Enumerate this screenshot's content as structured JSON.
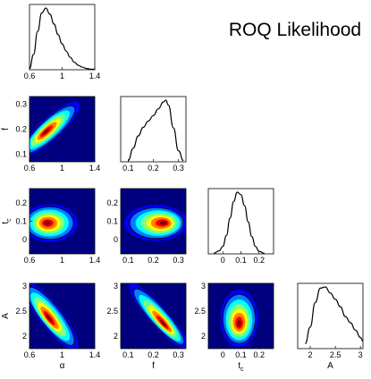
{
  "chart_data": {
    "type": "corner-plot",
    "title": "ROQ Likelihood",
    "parameters": [
      {
        "key": "alpha",
        "label": "α",
        "range": [
          0.6,
          1.4
        ],
        "ticks": [
          0.6,
          1,
          1.4
        ],
        "tick_labels": [
          "0.6",
          "1",
          "1.4"
        ]
      },
      {
        "key": "f",
        "label": "f",
        "range": [
          0.07,
          0.33
        ],
        "ticks": [
          0.1,
          0.2,
          0.3
        ],
        "tick_labels": [
          "0.1",
          "0.2",
          "0.3"
        ]
      },
      {
        "key": "tc",
        "label": "t",
        "label_sub": "c",
        "range": [
          -0.08,
          0.28
        ],
        "ticks": [
          0,
          0.1,
          0.2
        ],
        "tick_labels": [
          "0",
          "0.1",
          "0.2"
        ]
      },
      {
        "key": "A",
        "label": "A",
        "range": [
          1.75,
          3.05
        ],
        "ticks": [
          2,
          2.5,
          3
        ],
        "tick_labels": [
          "2",
          "2.5",
          "3"
        ]
      }
    ],
    "marginals": [
      {
        "param": "alpha",
        "x": [
          0.6,
          0.65,
          0.7,
          0.75,
          0.8,
          0.85,
          0.9,
          0.95,
          1.0,
          1.05,
          1.1,
          1.15,
          1.2,
          1.25,
          1.3,
          1.35,
          1.4
        ],
        "density": [
          0.02,
          0.25,
          0.62,
          0.92,
          1.0,
          0.9,
          0.74,
          0.57,
          0.42,
          0.3,
          0.2,
          0.12,
          0.07,
          0.04,
          0.02,
          0.01,
          0.005
        ]
      },
      {
        "param": "f",
        "x": [
          0.1,
          0.12,
          0.14,
          0.16,
          0.18,
          0.2,
          0.22,
          0.24,
          0.25,
          0.26,
          0.28,
          0.3,
          0.32
        ],
        "density": [
          0.02,
          0.22,
          0.42,
          0.56,
          0.66,
          0.75,
          0.86,
          0.97,
          1.0,
          0.92,
          0.55,
          0.18,
          0.02
        ]
      },
      {
        "param": "tc",
        "x": [
          -0.05,
          -0.02,
          0.0,
          0.02,
          0.04,
          0.06,
          0.08,
          0.1,
          0.12,
          0.14,
          0.16,
          0.18,
          0.2,
          0.23
        ],
        "density": [
          0.01,
          0.05,
          0.12,
          0.3,
          0.58,
          0.85,
          1.0,
          0.96,
          0.78,
          0.52,
          0.28,
          0.12,
          0.04,
          0.01
        ]
      },
      {
        "param": "A",
        "x": [
          1.9,
          2.0,
          2.1,
          2.2,
          2.3,
          2.4,
          2.5,
          2.6,
          2.7,
          2.8,
          2.9,
          3.0,
          3.05
        ],
        "density": [
          0.08,
          0.35,
          0.75,
          0.98,
          1.0,
          0.9,
          0.8,
          0.68,
          0.52,
          0.42,
          0.3,
          0.18,
          0.12
        ]
      }
    ],
    "joints": [
      {
        "x": "alpha",
        "y": "f",
        "mean": [
          0.85,
          0.2
        ],
        "sd": [
          0.14,
          0.042
        ],
        "corr": 0.85,
        "peak": [
          0.8,
          0.19
        ]
      },
      {
        "x": "alpha",
        "y": "tc",
        "mean": [
          0.85,
          0.09
        ],
        "sd": [
          0.13,
          0.04
        ],
        "corr": 0.0,
        "peak": [
          0.82,
          0.09
        ]
      },
      {
        "x": "f",
        "y": "tc",
        "mean": [
          0.21,
          0.09
        ],
        "sd": [
          0.048,
          0.038
        ],
        "corr": 0.0,
        "peak": [
          0.24,
          0.09
        ]
      },
      {
        "x": "alpha",
        "y": "A",
        "mean": [
          0.86,
          2.4
        ],
        "sd": [
          0.13,
          0.26
        ],
        "corr": -0.85,
        "peak": [
          0.84,
          2.35
        ]
      },
      {
        "x": "f",
        "y": "A",
        "mean": [
          0.22,
          2.4
        ],
        "sd": [
          0.045,
          0.25
        ],
        "corr": -0.9,
        "peak": [
          0.24,
          2.25
        ]
      },
      {
        "x": "tc",
        "y": "A",
        "mean": [
          0.09,
          2.35
        ],
        "sd": [
          0.04,
          0.22
        ],
        "corr": 0.0,
        "peak": [
          0.09,
          2.25
        ]
      }
    ],
    "colormap": [
      "#00007f",
      "#0000ff",
      "#007fff",
      "#00ffff",
      "#7fff7f",
      "#ffff00",
      "#ff7f00",
      "#ff0000",
      "#7f0000"
    ],
    "grid": false
  }
}
